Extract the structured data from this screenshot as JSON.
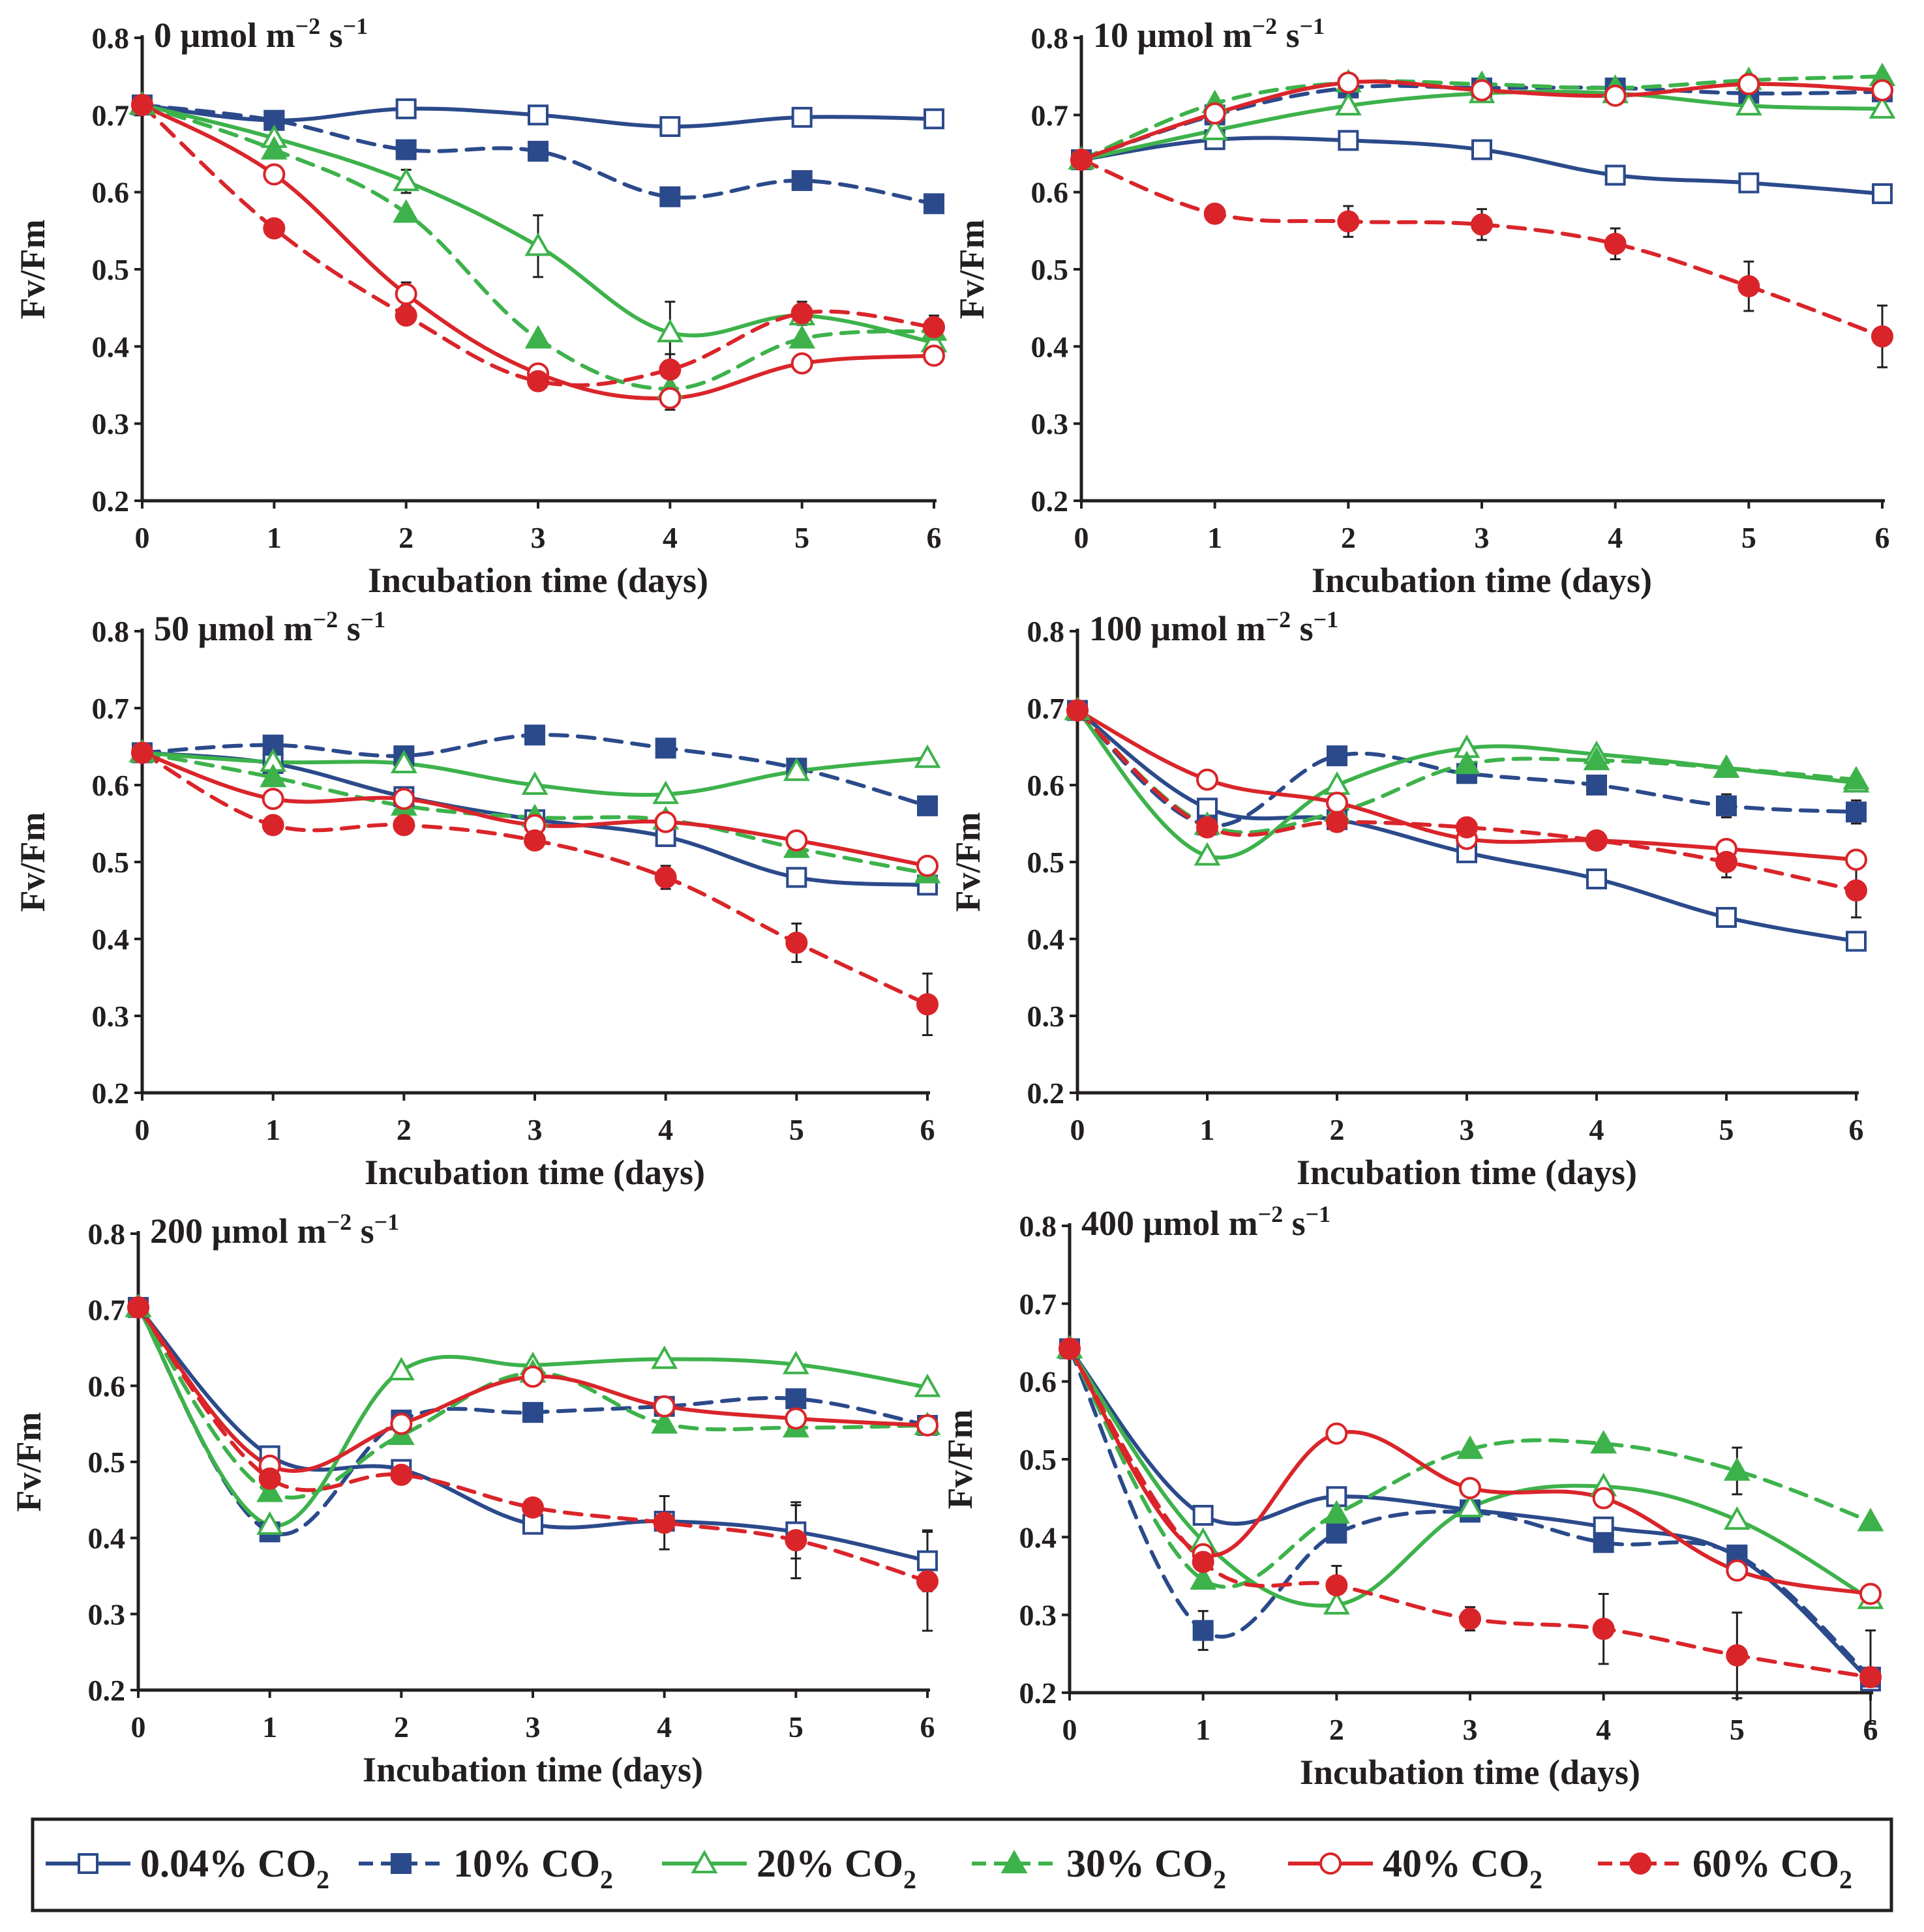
{
  "colors": {
    "co2_004": "#2b4a8b",
    "co2_10": "#2b4a8b",
    "co2_20": "#3db24b",
    "co2_30": "#3db24b",
    "co2_40": "#d9252a",
    "co2_60": "#d9252a",
    "axis": "#231f20"
  },
  "legend": {
    "items": [
      {
        "key": "co2_004",
        "main": "0.04% CO",
        "sub": "2"
      },
      {
        "key": "co2_10",
        "main": "10% CO",
        "sub": "2"
      },
      {
        "key": "co2_20",
        "main": "20% CO",
        "sub": "2"
      },
      {
        "key": "co2_30",
        "main": "30% CO",
        "sub": "2"
      },
      {
        "key": "co2_40",
        "main": "40% CO",
        "sub": "2"
      },
      {
        "key": "co2_60",
        "main": "60% CO",
        "sub": "2"
      }
    ]
  },
  "chart_data": [
    {
      "type": "line",
      "title": {
        "main": "0 μmol m",
        "sup1": "−2",
        "mid": " s",
        "sup2": "−1"
      },
      "xlabel": "Incubation time (days)",
      "ylabel": "Fv/Fm",
      "x": [
        0,
        1,
        2,
        3,
        4,
        5,
        6
      ],
      "xticks": [
        "0",
        "1",
        "2",
        "3",
        "4",
        "5",
        "6"
      ],
      "ylim": [
        0.2,
        0.8
      ],
      "yticks": [
        "0.2",
        "0.3",
        "0.4",
        "0.5",
        "0.6",
        "0.7",
        "0.8"
      ],
      "series": [
        {
          "name": "0.04% CO2",
          "key": "co2_004",
          "values": [
            0.713,
            0.693,
            0.708,
            0.7,
            0.685,
            0.697,
            0.695
          ],
          "errors": [
            0,
            0,
            0,
            0,
            0,
            0,
            0
          ]
        },
        {
          "name": "10% CO2",
          "key": "co2_10",
          "values": [
            0.713,
            0.693,
            0.655,
            0.653,
            0.594,
            0.615,
            0.585
          ],
          "errors": [
            0,
            0,
            0,
            0,
            0.012,
            0,
            0.01
          ]
        },
        {
          "name": "20% CO2",
          "key": "co2_20",
          "values": [
            0.713,
            0.67,
            0.614,
            0.53,
            0.418,
            0.44,
            0.405
          ],
          "errors": [
            0,
            0,
            0.015,
            0.04,
            0.04,
            0,
            0
          ]
        },
        {
          "name": "30% CO2",
          "key": "co2_30",
          "values": [
            0.713,
            0.655,
            0.573,
            0.41,
            0.345,
            0.41,
            0.42
          ],
          "errors": [
            0,
            0,
            0,
            0,
            0,
            0,
            0
          ]
        },
        {
          "name": "40% CO2",
          "key": "co2_40",
          "values": [
            0.713,
            0.623,
            0.468,
            0.365,
            0.333,
            0.378,
            0.388
          ],
          "errors": [
            0,
            0,
            0.015,
            0,
            0.015,
            0,
            0
          ]
        },
        {
          "name": "60% CO2",
          "key": "co2_60",
          "values": [
            0.713,
            0.553,
            0.44,
            0.355,
            0.37,
            0.443,
            0.425
          ],
          "errors": [
            0,
            0,
            0.01,
            0,
            0.02,
            0.015,
            0.015
          ]
        }
      ]
    },
    {
      "type": "line",
      "title": {
        "main": "10 μmol m",
        "sup1": "−2",
        "mid": " s",
        "sup2": "−1"
      },
      "xlabel": "Incubation time (days)",
      "ylabel": "Fv/Fm",
      "x": [
        0,
        1,
        2,
        3,
        4,
        5,
        6
      ],
      "xticks": [
        "0",
        "1",
        "2",
        "3",
        "4",
        "5",
        "6"
      ],
      "ylim": [
        0.2,
        0.8
      ],
      "yticks": [
        "0.2",
        "0.3",
        "0.4",
        "0.5",
        "0.6",
        "0.7",
        "0.8"
      ],
      "series": [
        {
          "name": "0.04% CO2",
          "key": "co2_004",
          "values": [
            0.642,
            0.668,
            0.667,
            0.655,
            0.622,
            0.612,
            0.598
          ],
          "errors": [
            0,
            0,
            0,
            0,
            0,
            0,
            0
          ]
        },
        {
          "name": "10% CO2",
          "key": "co2_10",
          "values": [
            0.642,
            0.7,
            0.735,
            0.735,
            0.735,
            0.728,
            0.73
          ],
          "errors": [
            0,
            0,
            0,
            0,
            0,
            0,
            0
          ]
        },
        {
          "name": "20% CO2",
          "key": "co2_20",
          "values": [
            0.642,
            0.68,
            0.712,
            0.728,
            0.728,
            0.712,
            0.708
          ],
          "errors": [
            0,
            0,
            0,
            0,
            0,
            0,
            0
          ]
        },
        {
          "name": "30% CO2",
          "key": "co2_30",
          "values": [
            0.642,
            0.715,
            0.742,
            0.74,
            0.735,
            0.745,
            0.75
          ],
          "errors": [
            0,
            0,
            0,
            0,
            0,
            0,
            0
          ]
        },
        {
          "name": "40% CO2",
          "key": "co2_40",
          "values": [
            0.642,
            0.702,
            0.742,
            0.732,
            0.725,
            0.74,
            0.732
          ],
          "errors": [
            0,
            0,
            0,
            0,
            0,
            0,
            0
          ]
        },
        {
          "name": "60% CO2",
          "key": "co2_60",
          "values": [
            0.642,
            0.572,
            0.562,
            0.558,
            0.533,
            0.478,
            0.413
          ],
          "errors": [
            0,
            0,
            0.02,
            0.02,
            0.02,
            0.032,
            0.04
          ]
        }
      ]
    },
    {
      "type": "line",
      "title": {
        "main": "50 μmol m",
        "sup1": "−2",
        "mid": " s",
        "sup2": "−1"
      },
      "xlabel": "Incubation time (days)",
      "ylabel": "Fv/Fm",
      "x": [
        0,
        1,
        2,
        3,
        4,
        5,
        6
      ],
      "xticks": [
        "0",
        "1",
        "2",
        "3",
        "4",
        "5",
        "6"
      ],
      "ylim": [
        0.2,
        0.8
      ],
      "yticks": [
        "0.2",
        "0.3",
        "0.4",
        "0.5",
        "0.6",
        "0.7",
        "0.8"
      ],
      "series": [
        {
          "name": "0.04% CO2",
          "key": "co2_004",
          "values": [
            0.642,
            0.628,
            0.585,
            0.555,
            0.533,
            0.48,
            0.47
          ],
          "errors": [
            0,
            0,
            0,
            0,
            0,
            0,
            0
          ]
        },
        {
          "name": "10% CO2",
          "key": "co2_10",
          "values": [
            0.642,
            0.652,
            0.638,
            0.665,
            0.648,
            0.622,
            0.573
          ],
          "errors": [
            0,
            0,
            0,
            0,
            0,
            0,
            0
          ]
        },
        {
          "name": "20% CO2",
          "key": "co2_20",
          "values": [
            0.642,
            0.63,
            0.628,
            0.6,
            0.588,
            0.618,
            0.635
          ],
          "errors": [
            0,
            0,
            0,
            0,
            0,
            0,
            0
          ]
        },
        {
          "name": "30% CO2",
          "key": "co2_30",
          "values": [
            0.642,
            0.61,
            0.573,
            0.558,
            0.555,
            0.518,
            0.485
          ],
          "errors": [
            0,
            0,
            0,
            0,
            0,
            0,
            0
          ]
        },
        {
          "name": "40% CO2",
          "key": "co2_40",
          "values": [
            0.642,
            0.582,
            0.582,
            0.548,
            0.552,
            0.528,
            0.495
          ],
          "errors": [
            0,
            0,
            0,
            0,
            0,
            0,
            0
          ]
        },
        {
          "name": "60% CO2",
          "key": "co2_60",
          "values": [
            0.642,
            0.548,
            0.548,
            0.528,
            0.48,
            0.395,
            0.315
          ],
          "errors": [
            0,
            0,
            0,
            0,
            0.015,
            0.025,
            0.04
          ]
        }
      ]
    },
    {
      "type": "line",
      "title": {
        "main": "100 μmol m",
        "sup1": "−2",
        "mid": " s",
        "sup2": "−1"
      },
      "xlabel": "Incubation time (days)",
      "ylabel": "Fv/Fm",
      "x": [
        0,
        1,
        2,
        3,
        4,
        5,
        6
      ],
      "xticks": [
        "0",
        "1",
        "2",
        "3",
        "4",
        "5",
        "6"
      ],
      "ylim": [
        0.2,
        0.8
      ],
      "yticks": [
        "0.2",
        "0.3",
        "0.4",
        "0.5",
        "0.6",
        "0.7",
        "0.8"
      ],
      "series": [
        {
          "name": "0.04% CO2",
          "key": "co2_004",
          "values": [
            0.697,
            0.57,
            0.555,
            0.512,
            0.478,
            0.428,
            0.397
          ],
          "errors": [
            0,
            0,
            0,
            0,
            0,
            0,
            0
          ]
        },
        {
          "name": "10% CO2",
          "key": "co2_10",
          "values": [
            0.697,
            0.548,
            0.638,
            0.615,
            0.6,
            0.573,
            0.565
          ],
          "errors": [
            0,
            0,
            0,
            0,
            0,
            0.015,
            0.015
          ]
        },
        {
          "name": "20% CO2",
          "key": "co2_20",
          "values": [
            0.697,
            0.508,
            0.6,
            0.648,
            0.64,
            0.622,
            0.603
          ],
          "errors": [
            0,
            0,
            0,
            0,
            0,
            0,
            0
          ]
        },
        {
          "name": "30% CO2",
          "key": "co2_30",
          "values": [
            0.697,
            0.548,
            0.565,
            0.627,
            0.632,
            0.622,
            0.607
          ],
          "errors": [
            0,
            0,
            0,
            0,
            0,
            0,
            0
          ]
        },
        {
          "name": "40% CO2",
          "key": "co2_40",
          "values": [
            0.697,
            0.607,
            0.577,
            0.53,
            0.528,
            0.517,
            0.503
          ],
          "errors": [
            0,
            0,
            0,
            0,
            0,
            0,
            0
          ]
        },
        {
          "name": "60% CO2",
          "key": "co2_60",
          "values": [
            0.697,
            0.545,
            0.552,
            0.545,
            0.528,
            0.5,
            0.463
          ],
          "errors": [
            0,
            0,
            0,
            0,
            0,
            0.02,
            0.035
          ]
        }
      ]
    },
    {
      "type": "line",
      "title": {
        "main": "200 μmol m",
        "sup1": "−2",
        "mid": " s",
        "sup2": "−1"
      },
      "xlabel": "Incubation time (days)",
      "ylabel": "Fv/Fm",
      "x": [
        0,
        1,
        2,
        3,
        4,
        5,
        6
      ],
      "xticks": [
        "0",
        "1",
        "2",
        "3",
        "4",
        "5",
        "6"
      ],
      "ylim": [
        0.2,
        0.8
      ],
      "yticks": [
        "0.2",
        "0.3",
        "0.4",
        "0.5",
        "0.6",
        "0.7",
        "0.8"
      ],
      "series": [
        {
          "name": "0.04% CO2",
          "key": "co2_004",
          "values": [
            0.703,
            0.508,
            0.49,
            0.418,
            0.422,
            0.408,
            0.37
          ],
          "errors": [
            0,
            0,
            0,
            0,
            0,
            0.035,
            0.04
          ]
        },
        {
          "name": "10% CO2",
          "key": "co2_10",
          "values": [
            0.703,
            0.408,
            0.555,
            0.565,
            0.573,
            0.583,
            0.548
          ],
          "errors": [
            0,
            0,
            0,
            0,
            0,
            0,
            0
          ]
        },
        {
          "name": "20% CO2",
          "key": "co2_20",
          "values": [
            0.703,
            0.417,
            0.62,
            0.627,
            0.635,
            0.628,
            0.598
          ],
          "errors": [
            0,
            0,
            0,
            0,
            0,
            0,
            0
          ]
        },
        {
          "name": "30% CO2",
          "key": "co2_30",
          "values": [
            0.703,
            0.46,
            0.535,
            0.617,
            0.55,
            0.545,
            0.548
          ],
          "errors": [
            0,
            0,
            0,
            0,
            0,
            0,
            0
          ]
        },
        {
          "name": "40% CO2",
          "key": "co2_40",
          "values": [
            0.703,
            0.495,
            0.55,
            0.612,
            0.573,
            0.557,
            0.548
          ],
          "errors": [
            0,
            0,
            0,
            0,
            0,
            0,
            0
          ]
        },
        {
          "name": "60% CO2",
          "key": "co2_60",
          "values": [
            0.703,
            0.478,
            0.483,
            0.44,
            0.42,
            0.397,
            0.343
          ],
          "errors": [
            0,
            0,
            0,
            0,
            0.035,
            0.05,
            0.065
          ]
        }
      ]
    },
    {
      "type": "line",
      "title": {
        "main": "400 μmol m",
        "sup1": "−2",
        "mid": " s",
        "sup2": "−1"
      },
      "xlabel": "Incubation time (days)",
      "ylabel": "Fv/Fm",
      "x": [
        0,
        1,
        2,
        3,
        4,
        5,
        6
      ],
      "xticks": [
        "0",
        "1",
        "2",
        "3",
        "4",
        "5",
        "6"
      ],
      "ylim": [
        0.2,
        0.8
      ],
      "yticks": [
        "0.2",
        "0.3",
        "0.4",
        "0.5",
        "0.6",
        "0.7",
        "0.8"
      ],
      "series": [
        {
          "name": "0.04% CO2",
          "key": "co2_004",
          "values": [
            0.642,
            0.428,
            0.452,
            0.435,
            0.413,
            0.375,
            0.215
          ],
          "errors": [
            0,
            0,
            0,
            0,
            0,
            0,
            0
          ]
        },
        {
          "name": "10% CO2",
          "key": "co2_10",
          "values": [
            0.642,
            0.28,
            0.405,
            0.432,
            0.393,
            0.377,
            0.22
          ],
          "errors": [
            0,
            0.025,
            0,
            0,
            0,
            0,
            0
          ]
        },
        {
          "name": "20% CO2",
          "key": "co2_20",
          "values": [
            0.642,
            0.395,
            0.313,
            0.438,
            0.465,
            0.422,
            0.32
          ],
          "errors": [
            0,
            0,
            0,
            0,
            0,
            0,
            0
          ]
        },
        {
          "name": "30% CO2",
          "key": "co2_30",
          "values": [
            0.642,
            0.345,
            0.43,
            0.513,
            0.52,
            0.485,
            0.42
          ],
          "errors": [
            0,
            0,
            0,
            0,
            0,
            0.03,
            0
          ]
        },
        {
          "name": "40% CO2",
          "key": "co2_40",
          "values": [
            0.642,
            0.378,
            0.533,
            0.463,
            0.45,
            0.357,
            0.327
          ],
          "errors": [
            0,
            0,
            0,
            0,
            0,
            0,
            0
          ]
        },
        {
          "name": "60% CO2",
          "key": "co2_60",
          "values": [
            0.642,
            0.368,
            0.338,
            0.295,
            0.282,
            0.248,
            0.22
          ],
          "errors": [
            0,
            0,
            0.025,
            0.015,
            0.045,
            0.055,
            0.06
          ]
        }
      ]
    }
  ]
}
